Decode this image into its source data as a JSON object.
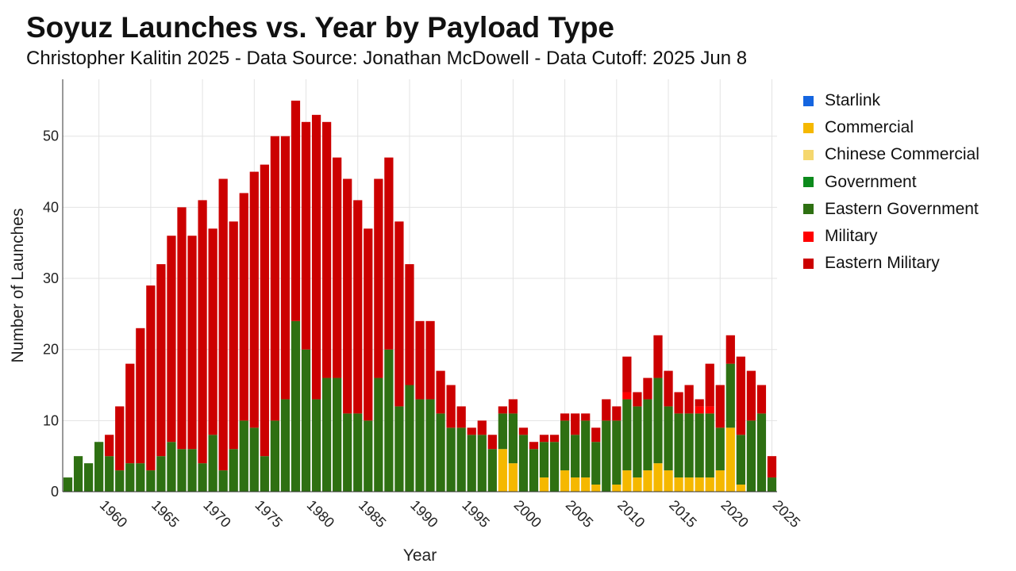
{
  "chart_data": {
    "type": "bar",
    "stacked": true,
    "title": "Soyuz Launches vs. Year by Payload Type",
    "subtitle": "Christopher Kalitin 2025 - Data Source: Jonathan McDowell - Data Cutoff: 2025 Jun 8",
    "xlabel": "Year",
    "ylabel": "Number of Launches",
    "xlim": [
      1956.5,
      2025.5
    ],
    "ylim": [
      0,
      58
    ],
    "x_ticks": [
      1960,
      1965,
      1970,
      1975,
      1980,
      1985,
      1990,
      1995,
      2000,
      2005,
      2010,
      2015,
      2020,
      2025
    ],
    "y_ticks": [
      0,
      10,
      20,
      30,
      40,
      50
    ],
    "grid": true,
    "legend_position": "right",
    "x": [
      1957,
      1958,
      1959,
      1960,
      1961,
      1962,
      1963,
      1964,
      1965,
      1966,
      1967,
      1968,
      1969,
      1970,
      1971,
      1972,
      1973,
      1974,
      1975,
      1976,
      1977,
      1978,
      1979,
      1980,
      1981,
      1982,
      1983,
      1984,
      1985,
      1986,
      1987,
      1988,
      1989,
      1990,
      1991,
      1992,
      1993,
      1994,
      1995,
      1996,
      1997,
      1998,
      1999,
      2000,
      2001,
      2002,
      2003,
      2004,
      2005,
      2006,
      2007,
      2008,
      2009,
      2010,
      2011,
      2012,
      2013,
      2014,
      2015,
      2016,
      2017,
      2018,
      2019,
      2020,
      2021,
      2022,
      2023,
      2024,
      2025
    ],
    "series": [
      {
        "name": "Starlink",
        "color": "#1565e0",
        "values": [
          0,
          0,
          0,
          0,
          0,
          0,
          0,
          0,
          0,
          0,
          0,
          0,
          0,
          0,
          0,
          0,
          0,
          0,
          0,
          0,
          0,
          0,
          0,
          0,
          0,
          0,
          0,
          0,
          0,
          0,
          0,
          0,
          0,
          0,
          0,
          0,
          0,
          0,
          0,
          0,
          0,
          0,
          0,
          0,
          0,
          0,
          0,
          0,
          0,
          0,
          0,
          0,
          0,
          0,
          0,
          0,
          0,
          0,
          0,
          0,
          0,
          0,
          0,
          0,
          0,
          0,
          0,
          0,
          0
        ]
      },
      {
        "name": "Commercial",
        "color": "#f5b800",
        "values": [
          0,
          0,
          0,
          0,
          0,
          0,
          0,
          0,
          0,
          0,
          0,
          0,
          0,
          0,
          0,
          0,
          0,
          0,
          0,
          0,
          0,
          0,
          0,
          0,
          0,
          0,
          0,
          0,
          0,
          0,
          0,
          0,
          0,
          0,
          0,
          0,
          0,
          0,
          0,
          0,
          0,
          0,
          6,
          4,
          0,
          0,
          2,
          0,
          3,
          2,
          2,
          1,
          0,
          1,
          3,
          2,
          3,
          4,
          3,
          2,
          2,
          2,
          2,
          3,
          9,
          1,
          0,
          0,
          0
        ]
      },
      {
        "name": "Chinese Commercial",
        "color": "#f5d76e",
        "values": [
          0,
          0,
          0,
          0,
          0,
          0,
          0,
          0,
          0,
          0,
          0,
          0,
          0,
          0,
          0,
          0,
          0,
          0,
          0,
          0,
          0,
          0,
          0,
          0,
          0,
          0,
          0,
          0,
          0,
          0,
          0,
          0,
          0,
          0,
          0,
          0,
          0,
          0,
          0,
          0,
          0,
          0,
          0,
          0,
          0,
          0,
          0,
          0,
          0,
          0,
          0,
          0,
          0,
          0,
          0,
          0,
          0,
          0,
          0,
          0,
          0,
          0,
          0,
          0,
          0,
          0,
          0,
          0,
          0
        ]
      },
      {
        "name": "Government",
        "color": "#0c8a1c",
        "values": [
          0,
          0,
          0,
          0,
          0,
          0,
          0,
          0,
          0,
          0,
          0,
          0,
          0,
          0,
          0,
          0,
          0,
          0,
          0,
          0,
          0,
          0,
          0,
          0,
          0,
          0,
          0,
          0,
          0,
          0,
          0,
          0,
          0,
          0,
          0,
          0,
          0,
          0,
          0,
          0,
          0,
          0,
          0,
          0,
          0,
          0,
          0,
          0,
          0,
          0,
          0,
          0,
          0,
          0,
          0,
          0,
          0,
          0,
          0,
          0,
          0,
          0,
          0,
          0,
          0,
          0,
          0,
          0,
          0
        ]
      },
      {
        "name": "Eastern Government",
        "color": "#2e7012",
        "values": [
          2,
          5,
          4,
          7,
          5,
          3,
          4,
          4,
          3,
          5,
          7,
          6,
          6,
          4,
          8,
          3,
          6,
          10,
          9,
          5,
          10,
          13,
          24,
          20,
          13,
          16,
          16,
          11,
          11,
          10,
          16,
          20,
          12,
          15,
          13,
          13,
          11,
          9,
          9,
          8,
          8,
          6,
          5,
          7,
          8,
          6,
          5,
          7,
          7,
          6,
          8,
          6,
          10,
          9,
          10,
          10,
          10,
          12,
          9,
          9,
          9,
          9,
          9,
          6,
          9,
          7,
          10,
          11,
          2
        ]
      },
      {
        "name": "Military",
        "color": "#ff0000",
        "values": [
          0,
          0,
          0,
          0,
          0,
          0,
          0,
          0,
          0,
          0,
          0,
          0,
          0,
          0,
          0,
          0,
          0,
          0,
          0,
          0,
          0,
          0,
          0,
          0,
          0,
          0,
          0,
          0,
          0,
          0,
          0,
          0,
          0,
          0,
          0,
          0,
          0,
          0,
          0,
          0,
          0,
          0,
          0,
          0,
          0,
          0,
          0,
          0,
          0,
          0,
          0,
          0,
          0,
          0,
          1,
          0,
          0,
          0,
          0,
          0,
          0,
          1,
          1,
          0,
          0,
          0,
          0,
          0,
          0
        ]
      },
      {
        "name": "Eastern Military",
        "color": "#cc0000",
        "values": [
          0,
          0,
          0,
          0,
          3,
          9,
          14,
          19,
          26,
          27,
          29,
          34,
          30,
          37,
          29,
          41,
          32,
          32,
          36,
          41,
          40,
          37,
          31,
          32,
          40,
          36,
          31,
          33,
          30,
          27,
          28,
          27,
          26,
          17,
          11,
          11,
          6,
          6,
          3,
          1,
          2,
          2,
          1,
          2,
          1,
          1,
          1,
          1,
          1,
          3,
          1,
          2,
          3,
          2,
          5,
          2,
          3,
          6,
          5,
          3,
          4,
          1,
          6,
          6,
          4,
          11,
          7,
          4,
          3
        ]
      }
    ]
  }
}
